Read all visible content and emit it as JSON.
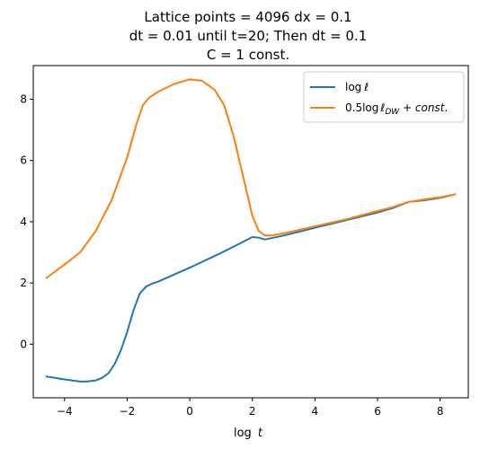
{
  "chart_data": {
    "type": "line",
    "title_lines": [
      "Lattice points = 4096 dx = 0.1",
      "dt = 0.01 until t=20; Then dt = 0.1",
      "C = 1 const."
    ],
    "xlabel": "log t",
    "ylabel": "",
    "xlim": [
      -5.0,
      8.9
    ],
    "ylim": [
      -1.75,
      9.1
    ],
    "xticks": [
      -4,
      -2,
      0,
      2,
      4,
      6,
      8
    ],
    "yticks": [
      0,
      2,
      4,
      6,
      8
    ],
    "xtick_labels": [
      "−4",
      "−2",
      "0",
      "2",
      "4",
      "6",
      "8"
    ],
    "ytick_labels": [
      "0",
      "2",
      "4",
      "6",
      "8"
    ],
    "grid": false,
    "legend_position": "top-right",
    "series": [
      {
        "name": "log ℓ",
        "color": "#1f77b4",
        "x": [
          -4.6,
          -4.0,
          -3.5,
          -3.3,
          -3.0,
          -2.8,
          -2.6,
          -2.4,
          -2.2,
          -2.0,
          -1.8,
          -1.6,
          -1.4,
          -1.2,
          -1.0,
          0.0,
          1.0,
          2.0,
          2.2,
          2.4,
          3.0,
          4.0,
          5.0,
          6.0,
          6.5,
          7.0,
          7.5,
          8.0,
          8.5
        ],
        "y": [
          -1.05,
          -1.15,
          -1.22,
          -1.22,
          -1.18,
          -1.1,
          -0.95,
          -0.65,
          -0.2,
          0.4,
          1.1,
          1.65,
          1.88,
          1.98,
          2.05,
          2.5,
          2.98,
          3.5,
          3.48,
          3.42,
          3.55,
          3.8,
          4.05,
          4.3,
          4.45,
          4.65,
          4.7,
          4.78,
          4.9
        ]
      },
      {
        "name": "0.5 log ℓ_DW + const.",
        "color": "#ff7f0e",
        "x": [
          -4.6,
          -4.0,
          -3.5,
          -3.0,
          -2.5,
          -2.0,
          -1.7,
          -1.5,
          -1.3,
          -1.0,
          -0.5,
          0.0,
          0.4,
          0.8,
          1.1,
          1.4,
          1.7,
          2.0,
          2.2,
          2.4,
          2.6,
          3.0,
          4.0,
          5.0,
          6.0,
          6.5,
          7.0,
          7.5,
          8.0,
          8.5
        ],
        "y": [
          2.15,
          2.6,
          3.0,
          3.7,
          4.7,
          6.1,
          7.2,
          7.8,
          8.05,
          8.25,
          8.5,
          8.65,
          8.6,
          8.3,
          7.8,
          6.8,
          5.5,
          4.2,
          3.7,
          3.55,
          3.55,
          3.62,
          3.85,
          4.08,
          4.35,
          4.48,
          4.65,
          4.73,
          4.8,
          4.9
        ]
      }
    ]
  }
}
